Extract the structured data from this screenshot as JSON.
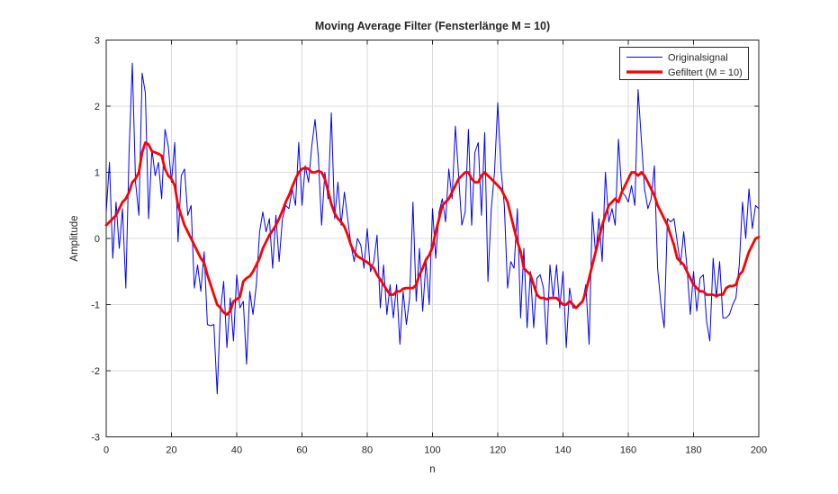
{
  "figure": {
    "background": "#FFFFFF"
  },
  "chart_data": {
    "type": "line",
    "title": "Moving Average Filter (Fensterlänge M = 10)",
    "xlabel": "n",
    "ylabel": "Amplitude",
    "xlim": [
      0,
      200
    ],
    "ylim": [
      -3,
      3
    ],
    "x_ticks": [
      0,
      20,
      40,
      60,
      80,
      100,
      120,
      140,
      160,
      180,
      200
    ],
    "y_ticks": [
      -3,
      -2,
      -1,
      0,
      1,
      2,
      3
    ],
    "grid": true,
    "x_start": 0,
    "x_step": 1,
    "series": [
      {
        "name": "Originalsignal",
        "color": "#0000FF",
        "line_width": 1,
        "values": [
          0.4,
          1.15,
          -0.3,
          0.55,
          -0.15,
          0.45,
          -0.75,
          1.3,
          2.65,
          0.85,
          0.35,
          2.5,
          2.2,
          0.3,
          1.35,
          0.95,
          1.15,
          0.6,
          1.65,
          1.4,
          0.85,
          1.45,
          -0.05,
          0.95,
          1.05,
          0.35,
          0.5,
          -0.75,
          -0.4,
          -0.8,
          -0.2,
          -1.3,
          -1.32,
          -1.3,
          -2.35,
          -1.1,
          -0.65,
          -1.65,
          -0.9,
          -1.55,
          -0.55,
          -1.05,
          -0.95,
          -1.9,
          -0.8,
          -1.15,
          -0.7,
          0.1,
          0.4,
          0.1,
          0.3,
          -0.45,
          0.35,
          -0.35,
          0.3,
          0.5,
          0.45,
          0.75,
          0.5,
          1.45,
          0.5,
          1.1,
          0.85,
          1.4,
          1.8,
          1.25,
          0.2,
          1.0,
          0.6,
          1.9,
          0.3,
          0.85,
          0.2,
          0.7,
          0.3,
          -0.1,
          -0.35,
          0.0,
          -0.1,
          -0.45,
          0.15,
          -0.5,
          -0.35,
          0.05,
          -1.05,
          -0.4,
          -1.15,
          -0.7,
          -1.2,
          -0.7,
          -1.6,
          -0.8,
          -1.3,
          -0.9,
          0.55,
          -0.95,
          -0.15,
          -1.1,
          -0.35,
          -1.0,
          0.45,
          -0.3,
          0.4,
          0.6,
          0.25,
          1.05,
          0.6,
          1.7,
          0.95,
          0.2,
          0.4,
          1.65,
          0.2,
          1.3,
          1.45,
          0.35,
          1.6,
          -0.65,
          0.45,
          1.0,
          2.05,
          1.05,
          0.5,
          -0.75,
          -0.35,
          -0.45,
          0.45,
          -1.2,
          -0.15,
          -1.35,
          -0.5,
          -1.35,
          -0.6,
          -0.55,
          -0.75,
          -1.6,
          -0.4,
          -0.9,
          -0.4,
          -1.05,
          -0.5,
          -1.65,
          -0.75,
          -1.05,
          -1.05,
          -1.0,
          -0.95,
          -0.7,
          -1.6,
          0.4,
          -0.25,
          0.3,
          -0.35,
          1.0,
          0.25,
          0.45,
          0.2,
          1.5,
          0.7,
          0.65,
          0.55,
          0.8,
          0.5,
          2.25,
          1.5,
          0.75,
          0.45,
          0.6,
          1.1,
          -0.45,
          -1.0,
          -1.35,
          0.3,
          0.25,
          0.3,
          -0.05,
          -0.4,
          0.1,
          -0.45,
          -1.15,
          -0.5,
          -1.1,
          -0.6,
          -0.55,
          -1.25,
          -1.55,
          -0.3,
          -0.9,
          -0.35,
          -1.2,
          -1.2,
          -1.15,
          -1.0,
          -0.9,
          -0.4,
          0.55,
          0.0,
          0.75,
          0.15,
          0.5,
          0.45
        ]
      },
      {
        "name": "Gefiltert (M = 10)",
        "color": "#FF0000",
        "line_width": 2.8,
        "values": [
          0.2,
          0.25,
          0.3,
          0.35,
          0.45,
          0.55,
          0.6,
          0.7,
          0.85,
          0.9,
          1.0,
          1.3,
          1.45,
          1.42,
          1.32,
          1.3,
          1.28,
          1.25,
          1.05,
          0.95,
          0.9,
          0.8,
          0.5,
          0.35,
          0.2,
          0.1,
          0.0,
          -0.1,
          -0.2,
          -0.3,
          -0.37,
          -0.55,
          -0.7,
          -0.85,
          -1.0,
          -1.05,
          -1.12,
          -1.15,
          -1.1,
          -0.95,
          -0.92,
          -0.88,
          -0.65,
          -0.6,
          -0.57,
          -0.5,
          -0.4,
          -0.3,
          -0.15,
          -0.05,
          0.05,
          0.12,
          0.2,
          0.3,
          0.42,
          0.55,
          0.65,
          0.78,
          0.9,
          1.0,
          1.05,
          1.07,
          1.05,
          1.0,
          1.0,
          1.02,
          1.0,
          0.9,
          0.72,
          0.52,
          0.38,
          0.3,
          0.25,
          0.18,
          0.05,
          -0.1,
          -0.2,
          -0.27,
          -0.3,
          -0.33,
          -0.36,
          -0.4,
          -0.45,
          -0.55,
          -0.62,
          -0.7,
          -0.78,
          -0.85,
          -0.85,
          -0.8,
          -0.8,
          -0.76,
          -0.75,
          -0.75,
          -0.75,
          -0.7,
          -0.55,
          -0.45,
          -0.32,
          -0.25,
          -0.13,
          0.1,
          0.3,
          0.5,
          0.55,
          0.6,
          0.7,
          0.8,
          0.9,
          0.95,
          1.0,
          1.0,
          0.9,
          0.85,
          0.85,
          0.95,
          1.0,
          0.95,
          0.9,
          0.85,
          0.8,
          0.75,
          0.65,
          0.55,
          0.35,
          0.15,
          -0.05,
          -0.2,
          -0.45,
          -0.5,
          -0.55,
          -0.7,
          -0.85,
          -0.9,
          -0.9,
          -0.92,
          -0.9,
          -0.9,
          -0.9,
          -0.95,
          -1.0,
          -1.0,
          -0.95,
          -1.0,
          -1.05,
          -1.0,
          -0.95,
          -0.8,
          -0.6,
          -0.4,
          -0.2,
          0.0,
          0.2,
          0.35,
          0.5,
          0.55,
          0.6,
          0.55,
          0.7,
          0.8,
          0.9,
          1.0,
          1.0,
          0.95,
          1.0,
          0.95,
          0.85,
          0.75,
          0.65,
          0.5,
          0.4,
          0.3,
          0.2,
          0.05,
          -0.1,
          -0.3,
          -0.35,
          -0.4,
          -0.5,
          -0.6,
          -0.7,
          -0.75,
          -0.8,
          -0.8,
          -0.85,
          -0.85,
          -0.85,
          -0.87,
          -0.85,
          -0.85,
          -0.75,
          -0.72,
          -0.72,
          -0.7,
          -0.55,
          -0.5,
          -0.35,
          -0.2,
          -0.1,
          0.0,
          0.02
        ]
      }
    ],
    "legend": {
      "position": "top-right",
      "entries": [
        {
          "label": "Originalsignal",
          "color": "#0000FF"
        },
        {
          "label": "Gefiltert (M = 10)",
          "color": "#FF0000"
        }
      ]
    },
    "colors": {
      "grid": "#DBDBDB",
      "axes": "#262626",
      "text": "#262626"
    }
  }
}
